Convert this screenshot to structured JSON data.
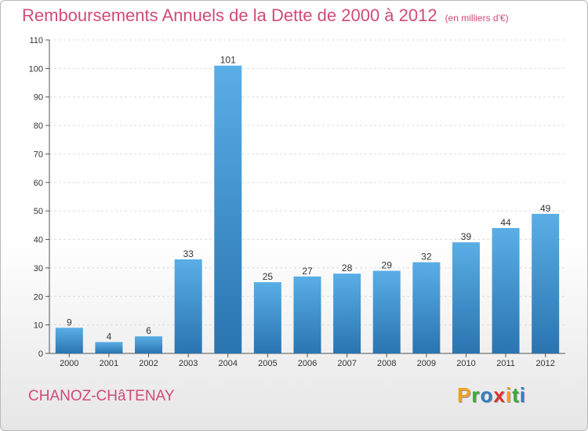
{
  "title": {
    "main": "Remboursements Annuels de la Dette de 2000 à 2012",
    "unit": "(en milliers d'€)"
  },
  "location": "CHANOZ-CHâTENAY",
  "logo": {
    "letters": [
      {
        "char": "P",
        "color": "#f0a020"
      },
      {
        "char": "r",
        "color": "#3aaa35"
      },
      {
        "char": "o",
        "color": "#2f7fc1"
      },
      {
        "char": "x",
        "color": "#e03030"
      },
      {
        "char": "i",
        "color": "#f0a020"
      },
      {
        "char": "t",
        "color": "#3aaa35"
      },
      {
        "char": "i",
        "color": "#2f7fc1"
      }
    ]
  },
  "chart_data": {
    "type": "bar",
    "title": "Remboursements Annuels de la Dette de 2000 à 2012",
    "xlabel": "",
    "ylabel": "",
    "categories": [
      "2000",
      "2001",
      "2002",
      "2003",
      "2004",
      "2005",
      "2006",
      "2007",
      "2008",
      "2009",
      "2010",
      "2011",
      "2012"
    ],
    "values": [
      9,
      4,
      6,
      33,
      101,
      25,
      27,
      28,
      29,
      32,
      39,
      44,
      49
    ],
    "ylim": [
      0,
      110
    ],
    "yticks": [
      0,
      10,
      20,
      30,
      40,
      50,
      60,
      70,
      80,
      90,
      100,
      110
    ],
    "grid": true,
    "bar_color_top": "#5aaee6",
    "bar_color_bottom": "#2a74b0"
  }
}
